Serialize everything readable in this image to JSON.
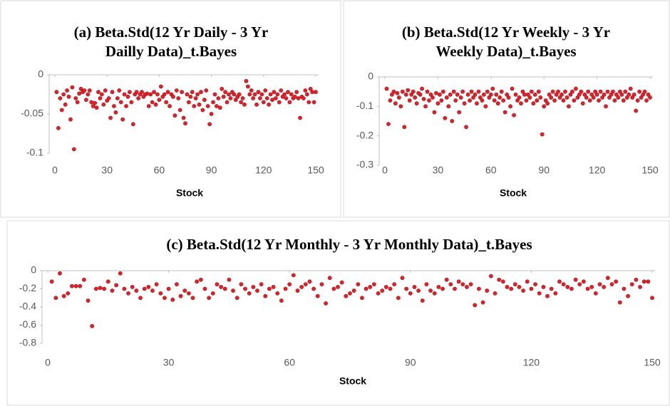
{
  "chart_data": [
    {
      "type": "scatter",
      "title": "(a) Beta.Std(12 Yr Daily - 3 Yr Dailly Data)_t.Bayes",
      "x_label": "Stock",
      "color": "#e02128",
      "xlim": [
        0,
        150
      ],
      "xticks": [
        0,
        30,
        60,
        90,
        120,
        150
      ],
      "ylim": [
        -0.1,
        0
      ],
      "yticks": [
        0,
        -0.05,
        -0.1
      ],
      "x": [
        1,
        2,
        3,
        4,
        5,
        6,
        7,
        8,
        9,
        10,
        11,
        12,
        13,
        14,
        15,
        16,
        17,
        18,
        19,
        20,
        21,
        22,
        23,
        24,
        25,
        26,
        27,
        28,
        29,
        30,
        31,
        32,
        33,
        34,
        35,
        36,
        37,
        38,
        39,
        40,
        41,
        42,
        43,
        44,
        45,
        46,
        47,
        48,
        49,
        50,
        51,
        52,
        53,
        54,
        55,
        56,
        57,
        58,
        59,
        60,
        61,
        62,
        63,
        64,
        65,
        66,
        67,
        68,
        69,
        70,
        71,
        72,
        73,
        74,
        75,
        76,
        77,
        78,
        79,
        80,
        81,
        82,
        83,
        84,
        85,
        86,
        87,
        88,
        89,
        90,
        91,
        92,
        93,
        94,
        95,
        96,
        97,
        98,
        99,
        100,
        101,
        102,
        103,
        104,
        105,
        106,
        107,
        108,
        109,
        110,
        111,
        112,
        113,
        114,
        115,
        116,
        117,
        118,
        119,
        120,
        121,
        122,
        123,
        124,
        125,
        126,
        127,
        128,
        129,
        130,
        131,
        132,
        133,
        134,
        135,
        136,
        137,
        138,
        139,
        140,
        141,
        142,
        143,
        144,
        145,
        146,
        147,
        148,
        149,
        150
      ],
      "values": [
        -0.022,
        -0.068,
        -0.03,
        -0.045,
        -0.025,
        -0.038,
        -0.02,
        -0.028,
        -0.057,
        -0.016,
        -0.095,
        -0.03,
        -0.035,
        -0.024,
        -0.018,
        -0.022,
        -0.02,
        -0.032,
        -0.025,
        -0.02,
        -0.035,
        -0.04,
        -0.036,
        -0.042,
        -0.022,
        -0.03,
        -0.025,
        -0.038,
        -0.02,
        -0.033,
        -0.03,
        -0.055,
        -0.022,
        -0.04,
        -0.048,
        -0.03,
        -0.02,
        -0.035,
        -0.057,
        -0.025,
        -0.04,
        -0.028,
        -0.022,
        -0.035,
        -0.063,
        -0.025,
        -0.022,
        -0.03,
        -0.025,
        -0.022,
        -0.028,
        -0.025,
        -0.024,
        -0.04,
        -0.025,
        -0.035,
        -0.022,
        -0.038,
        -0.025,
        -0.032,
        -0.015,
        -0.028,
        -0.025,
        -0.035,
        -0.022,
        -0.04,
        -0.025,
        -0.028,
        -0.052,
        -0.02,
        -0.03,
        -0.045,
        -0.022,
        -0.055,
        -0.062,
        -0.025,
        -0.035,
        -0.028,
        -0.022,
        -0.04,
        -0.03,
        -0.025,
        -0.038,
        -0.022,
        -0.045,
        -0.032,
        -0.02,
        -0.04,
        -0.063,
        -0.05,
        -0.035,
        -0.025,
        -0.04,
        -0.03,
        -0.042,
        -0.018,
        -0.028,
        -0.022,
        -0.035,
        -0.025,
        -0.03,
        -0.022,
        -0.025,
        -0.032,
        -0.028,
        -0.025,
        -0.035,
        -0.03,
        -0.038,
        -0.008,
        -0.015,
        -0.025,
        -0.02,
        -0.03,
        -0.025,
        -0.038,
        -0.022,
        -0.03,
        -0.025,
        -0.035,
        -0.02,
        -0.03,
        -0.038,
        -0.025,
        -0.032,
        -0.022,
        -0.03,
        -0.025,
        -0.035,
        -0.02,
        -0.028,
        -0.025,
        -0.03,
        -0.022,
        -0.035,
        -0.025,
        -0.03,
        -0.028,
        -0.022,
        -0.03,
        -0.055,
        -0.028,
        -0.03,
        -0.02,
        -0.025,
        -0.035,
        -0.018,
        -0.022,
        -0.035,
        -0.022
      ]
    },
    {
      "type": "scatter",
      "title": "(b) Beta.Std(12 Yr Weekly - 3 Yr Weekly Data)_t.Bayes",
      "x_label": "Stock",
      "color": "#e02128",
      "xlim": [
        0,
        150
      ],
      "xticks": [
        0,
        30,
        60,
        90,
        120,
        150
      ],
      "ylim": [
        -0.3,
        0
      ],
      "yticks": [
        0,
        -0.1,
        -0.2,
        -0.3
      ],
      "x": [
        1,
        2,
        3,
        4,
        5,
        6,
        7,
        8,
        9,
        10,
        11,
        12,
        13,
        14,
        15,
        16,
        17,
        18,
        19,
        20,
        21,
        22,
        23,
        24,
        25,
        26,
        27,
        28,
        29,
        30,
        31,
        32,
        33,
        34,
        35,
        36,
        37,
        38,
        39,
        40,
        41,
        42,
        43,
        44,
        45,
        46,
        47,
        48,
        49,
        50,
        51,
        52,
        53,
        54,
        55,
        56,
        57,
        58,
        59,
        60,
        61,
        62,
        63,
        64,
        65,
        66,
        67,
        68,
        69,
        70,
        71,
        72,
        73,
        74,
        75,
        76,
        77,
        78,
        79,
        80,
        81,
        82,
        83,
        84,
        85,
        86,
        87,
        88,
        89,
        90,
        91,
        92,
        93,
        94,
        95,
        96,
        97,
        98,
        99,
        100,
        101,
        102,
        103,
        104,
        105,
        106,
        107,
        108,
        109,
        110,
        111,
        112,
        113,
        114,
        115,
        116,
        117,
        118,
        119,
        120,
        121,
        122,
        123,
        124,
        125,
        126,
        127,
        128,
        129,
        130,
        131,
        132,
        133,
        134,
        135,
        136,
        137,
        138,
        139,
        140,
        141,
        142,
        143,
        144,
        145,
        146,
        147,
        148,
        149,
        150
      ],
      "values": [
        -0.04,
        -0.16,
        -0.08,
        -0.06,
        -0.05,
        -0.09,
        -0.055,
        -0.07,
        -0.1,
        -0.05,
        -0.17,
        -0.06,
        -0.045,
        -0.08,
        -0.06,
        -0.05,
        -0.07,
        -0.09,
        -0.055,
        -0.06,
        -0.04,
        -0.075,
        -0.1,
        -0.05,
        -0.08,
        -0.06,
        -0.07,
        -0.12,
        -0.055,
        -0.09,
        -0.06,
        -0.08,
        -0.05,
        -0.14,
        -0.07,
        -0.1,
        -0.06,
        -0.15,
        -0.05,
        -0.08,
        -0.06,
        -0.12,
        -0.07,
        -0.05,
        -0.09,
        -0.17,
        -0.06,
        -0.08,
        -0.05,
        -0.07,
        -0.06,
        -0.09,
        -0.05,
        -0.07,
        -0.08,
        -0.06,
        -0.1,
        -0.05,
        -0.07,
        -0.06,
        -0.04,
        -0.08,
        -0.06,
        -0.09,
        -0.07,
        -0.05,
        -0.08,
        -0.12,
        -0.06,
        -0.07,
        -0.1,
        -0.04,
        -0.13,
        -0.06,
        -0.08,
        -0.07,
        -0.09,
        -0.05,
        -0.06,
        -0.08,
        -0.06,
        -0.07,
        -0.05,
        -0.09,
        -0.06,
        -0.08,
        -0.05,
        -0.07,
        -0.195,
        -0.1,
        -0.08,
        -0.09,
        -0.06,
        -0.07,
        -0.05,
        -0.08,
        -0.06,
        -0.05,
        -0.07,
        -0.06,
        -0.08,
        -0.05,
        -0.07,
        -0.1,
        -0.06,
        -0.05,
        -0.08,
        -0.04,
        -0.07,
        -0.06,
        -0.05,
        -0.09,
        -0.06,
        -0.07,
        -0.05,
        -0.08,
        -0.06,
        -0.07,
        -0.05,
        -0.06,
        -0.08,
        -0.05,
        -0.07,
        -0.06,
        -0.1,
        -0.05,
        -0.07,
        -0.06,
        -0.05,
        -0.08,
        -0.06,
        -0.07,
        -0.05,
        -0.06,
        -0.08,
        -0.05,
        -0.07,
        -0.06,
        -0.04,
        -0.07,
        -0.06,
        -0.115,
        -0.08,
        -0.05,
        -0.07,
        -0.06,
        -0.05,
        -0.08,
        -0.06,
        -0.07
      ]
    },
    {
      "type": "scatter",
      "title": "(c) Beta.Std(12 Yr Monthly - 3 Yr Monthly Data)_t.Bayes",
      "x_label": "Stock",
      "color": "#e02128",
      "xlim": [
        0,
        150
      ],
      "xticks": [
        0,
        30,
        60,
        90,
        120,
        150
      ],
      "ylim": [
        -0.8,
        0
      ],
      "yticks": [
        0,
        -0.2,
        -0.4,
        -0.6,
        -0.8
      ],
      "x": [
        1,
        2,
        3,
        4,
        5,
        6,
        7,
        8,
        9,
        10,
        11,
        12,
        13,
        14,
        15,
        16,
        17,
        18,
        19,
        20,
        21,
        22,
        23,
        24,
        25,
        26,
        27,
        28,
        29,
        30,
        31,
        32,
        33,
        34,
        35,
        36,
        37,
        38,
        39,
        40,
        41,
        42,
        43,
        44,
        45,
        46,
        47,
        48,
        49,
        50,
        51,
        52,
        53,
        54,
        55,
        56,
        57,
        58,
        59,
        60,
        61,
        62,
        63,
        64,
        65,
        66,
        67,
        68,
        69,
        70,
        71,
        72,
        73,
        74,
        75,
        76,
        77,
        78,
        79,
        80,
        81,
        82,
        83,
        84,
        85,
        86,
        87,
        88,
        89,
        90,
        91,
        92,
        93,
        94,
        95,
        96,
        97,
        98,
        99,
        100,
        101,
        102,
        103,
        104,
        105,
        106,
        107,
        108,
        109,
        110,
        111,
        112,
        113,
        114,
        115,
        116,
        117,
        118,
        119,
        120,
        121,
        122,
        123,
        124,
        125,
        126,
        127,
        128,
        129,
        130,
        131,
        132,
        133,
        134,
        135,
        136,
        137,
        138,
        139,
        140,
        141,
        142,
        143,
        144,
        145,
        146,
        147,
        148,
        149,
        150
      ],
      "values": [
        -0.12,
        -0.3,
        -0.03,
        -0.28,
        -0.25,
        -0.17,
        -0.17,
        -0.17,
        -0.1,
        -0.33,
        -0.61,
        -0.2,
        -0.19,
        -0.2,
        -0.12,
        -0.22,
        -0.16,
        -0.03,
        -0.2,
        -0.25,
        -0.18,
        -0.22,
        -0.3,
        -0.2,
        -0.18,
        -0.22,
        -0.15,
        -0.25,
        -0.3,
        -0.2,
        -0.32,
        -0.15,
        -0.28,
        -0.22,
        -0.25,
        -0.3,
        -0.12,
        -0.1,
        -0.2,
        -0.3,
        -0.25,
        -0.15,
        -0.18,
        -0.2,
        -0.1,
        -0.22,
        -0.3,
        -0.15,
        -0.2,
        -0.25,
        -0.18,
        -0.22,
        -0.15,
        -0.28,
        -0.2,
        -0.18,
        -0.25,
        -0.33,
        -0.2,
        -0.15,
        -0.05,
        -0.22,
        -0.18,
        -0.15,
        -0.12,
        -0.2,
        -0.28,
        -0.15,
        -0.36,
        -0.08,
        -0.2,
        -0.18,
        -0.13,
        -0.28,
        -0.25,
        -0.22,
        -0.15,
        -0.3,
        -0.2,
        -0.18,
        -0.15,
        -0.25,
        -0.22,
        -0.18,
        -0.2,
        -0.15,
        -0.3,
        -0.08,
        -0.2,
        -0.25,
        -0.18,
        -0.22,
        -0.33,
        -0.15,
        -0.22,
        -0.25,
        -0.18,
        -0.2,
        -0.1,
        -0.15,
        -0.2,
        -0.12,
        -0.15,
        -0.18,
        -0.15,
        -0.38,
        -0.2,
        -0.35,
        -0.22,
        -0.06,
        -0.25,
        -0.1,
        -0.12,
        -0.18,
        -0.2,
        -0.15,
        -0.18,
        -0.22,
        -0.12,
        -0.2,
        -0.15,
        -0.25,
        -0.18,
        -0.28,
        -0.2,
        -0.25,
        -0.12,
        -0.15,
        -0.18,
        -0.2,
        -0.1,
        -0.15,
        -0.12,
        -0.2,
        -0.18,
        -0.25,
        -0.15,
        -0.18,
        -0.08,
        -0.15,
        -0.12,
        -0.35,
        -0.2,
        -0.28,
        -0.15,
        -0.1,
        -0.18,
        -0.12,
        -0.12,
        -0.3
      ]
    }
  ]
}
